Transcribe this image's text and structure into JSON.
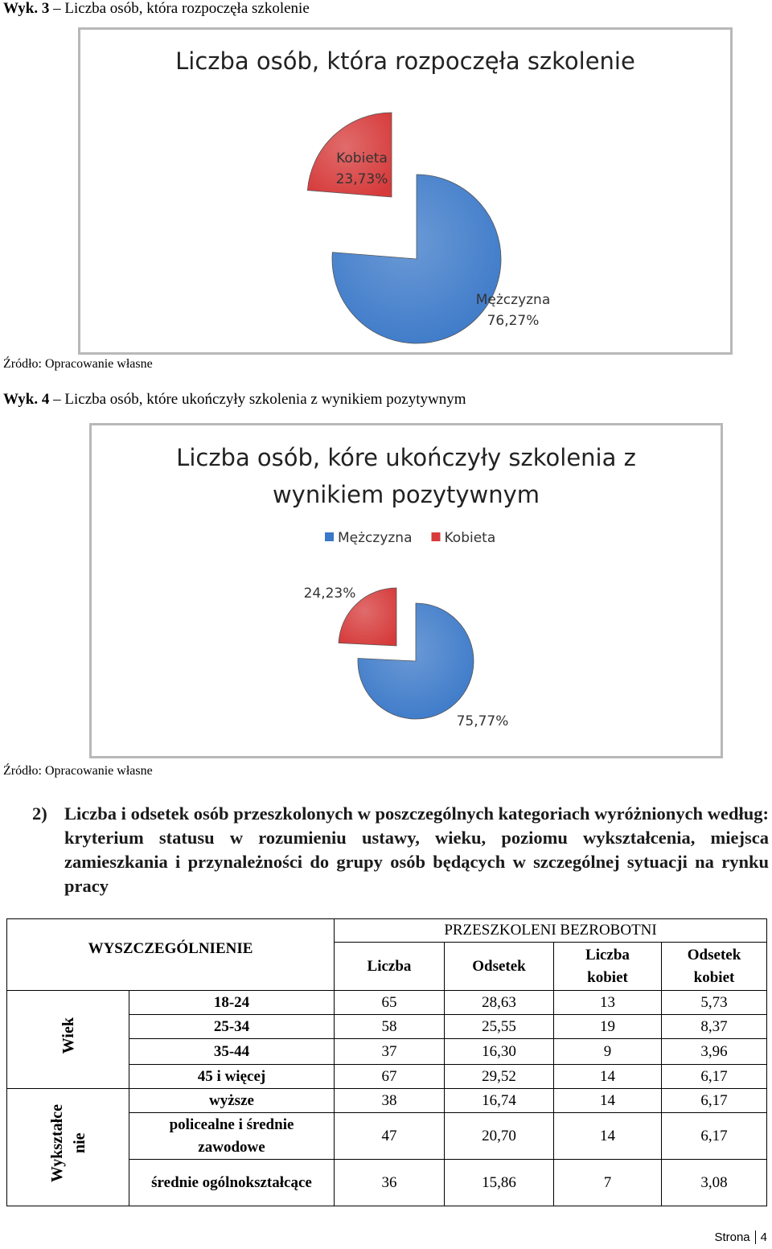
{
  "captions": [
    {
      "label": "Wyk. 3",
      "text": "– Liczba osób, która rozpoczęła szkolenie"
    },
    {
      "label": "Wyk. 4",
      "text": "– Liczba osób, które ukończyły szkolenia z wynikiem pozytywnym"
    }
  ],
  "sources": [
    "Źródło: Opracowanie własne",
    "Źródło: Opracowanie własne"
  ],
  "chart_data": [
    {
      "type": "pie",
      "title": "Liczba osób, która rozpoczęła szkolenie",
      "categories": [
        "Mężczyzna",
        "Kobieta"
      ],
      "values": [
        76.27,
        23.73
      ],
      "value_labels": [
        "76,27%",
        "23,73%"
      ],
      "colors": [
        "#3a78c8",
        "#d63a3a"
      ],
      "legend": false,
      "label_names": true
    },
    {
      "type": "pie",
      "title": "Liczba osób, kóre ukończyły szkolenia z wynikiem pozytywnym",
      "categories": [
        "Mężczyzna",
        "Kobieta"
      ],
      "values": [
        75.77,
        24.23
      ],
      "value_labels": [
        "75,77%",
        "24,23%"
      ],
      "colors": [
        "#3a78c8",
        "#d63a3a"
      ],
      "legend": true,
      "label_names": false
    }
  ],
  "section": {
    "number": "2)",
    "heading": "Liczba i odsetek osób przeszkolonych w poszczególnych kategoriach wyróżnionych według: kryterium statusu w rozumieniu ustawy, wieku, poziomu wykształcenia, miejsca zamieszkania i przynależności do grupy osób będących w szczególnej sytuacji na rynku pracy"
  },
  "table": {
    "header": {
      "spec": "WYSZCZEGÓLNIENIE",
      "group": "PRZESZKOLENI BEZROBOTNI",
      "columns": [
        "Liczba",
        "Odsetek",
        "Liczba kobiet",
        "Odsetek kobiet"
      ]
    },
    "groups": [
      {
        "label_lines": [
          "Wiek"
        ],
        "rows": [
          {
            "label": "18-24",
            "cells": [
              "65",
              "28,63",
              "13",
              "5,73"
            ]
          },
          {
            "label": "25-34",
            "cells": [
              "58",
              "25,55",
              "19",
              "8,37"
            ]
          },
          {
            "label": "35-44",
            "cells": [
              "37",
              "16,30",
              "9",
              "3,96"
            ]
          },
          {
            "label": "45 i więcej",
            "cells": [
              "67",
              "29,52",
              "14",
              "6,17"
            ]
          }
        ]
      },
      {
        "label_lines": [
          "Wykształce",
          "nie"
        ],
        "rows": [
          {
            "label": "wyższe",
            "cells": [
              "38",
              "16,74",
              "14",
              "6,17"
            ]
          },
          {
            "label": "policealne i średnie zawodowe",
            "cells": [
              "47",
              "20,70",
              "14",
              "6,17"
            ]
          },
          {
            "label": "średnie ogólnokształcące",
            "cells": [
              "36",
              "15,86",
              "7",
              "3,08"
            ]
          }
        ]
      }
    ]
  },
  "footer": {
    "label": "Strona",
    "page": "4"
  }
}
